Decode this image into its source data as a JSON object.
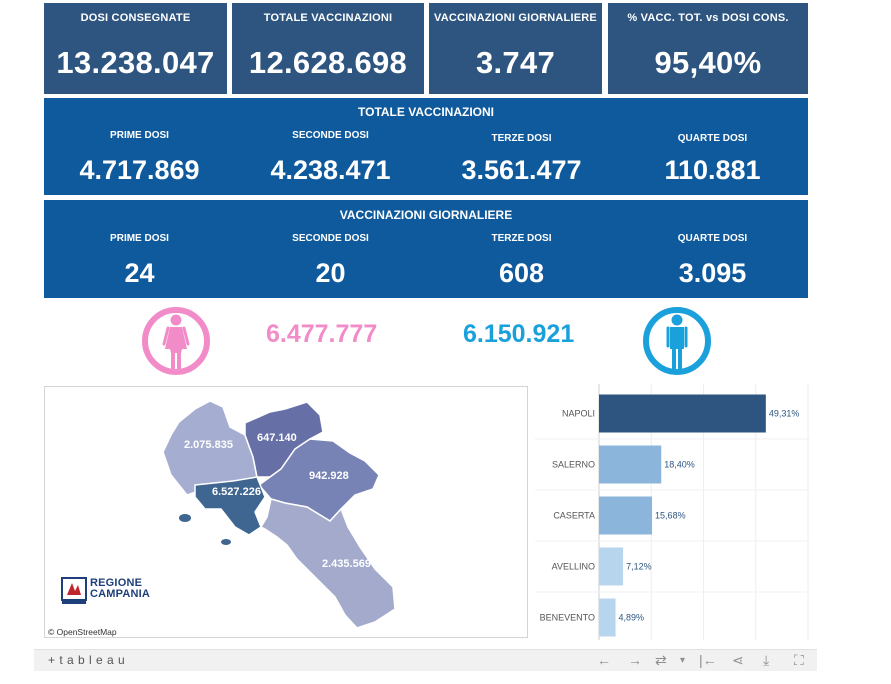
{
  "kpis": [
    {
      "label": "DOSI  CONSEGNATE",
      "value": "13.238.047"
    },
    {
      "label": "TOTALE VACCINAZIONI",
      "value": "12.628.698"
    },
    {
      "label": "VACCINAZIONI GIORNALIERE",
      "value": "3.747"
    },
    {
      "label": "% VACC. TOT. vs DOSI CONS.",
      "value": "95,40%"
    }
  ],
  "totale": {
    "title": "TOTALE VACCINAZIONI",
    "cols": [
      {
        "label": "PRIME DOSI",
        "value": "4.717.869"
      },
      {
        "label": "SECONDE DOSI",
        "value": "4.238.471"
      },
      {
        "label": "TERZE DOSI",
        "value": "3.561.477"
      },
      {
        "label": "QUARTE DOSI",
        "value": "110.881"
      }
    ]
  },
  "giornaliere": {
    "title": "VACCINAZIONI GIORNALIERE",
    "cols": [
      {
        "label": "PRIME DOSI",
        "value": "24"
      },
      {
        "label": "SECONDE DOSI",
        "value": "20"
      },
      {
        "label": "TERZE DOSI",
        "value": "608"
      },
      {
        "label": "QUARTE DOSI",
        "value": "3.095"
      }
    ]
  },
  "gender": {
    "female_value": "6.477.777",
    "male_value": "6.150.921",
    "female_color": "#f28cc9",
    "male_color": "#1aa1dc",
    "female_icon": "female-icon",
    "male_icon": "male-icon"
  },
  "map": {
    "labels": {
      "caserta": "2.075.835",
      "benevento": "647.140",
      "avellino": "942.928",
      "napoli": "6.527.226",
      "salerno": "2.435.569"
    },
    "logo_line1": "REGIONE",
    "logo_line2": "CAMPANIA",
    "attribution": "© OpenStreetMap"
  },
  "chart_data": {
    "type": "bar",
    "orientation": "horizontal",
    "categories": [
      "NAPOLI",
      "SALERNO",
      "CASERTA",
      "AVELLINO",
      "BENEVENTO"
    ],
    "values": [
      49.31,
      18.4,
      15.68,
      7.12,
      4.89
    ],
    "value_labels": [
      "49,31%",
      "18,40%",
      "15,68%",
      "7,12%",
      "4,89%"
    ],
    "xlim": [
      0,
      60
    ],
    "grid": true
  },
  "toolbar": {
    "brand": "+ t a b l e a u",
    "icons": [
      "undo-icon",
      "redo-icon",
      "revert-icon",
      "reset-icon",
      "share-icon",
      "download-icon",
      "fullscreen-icon"
    ]
  }
}
